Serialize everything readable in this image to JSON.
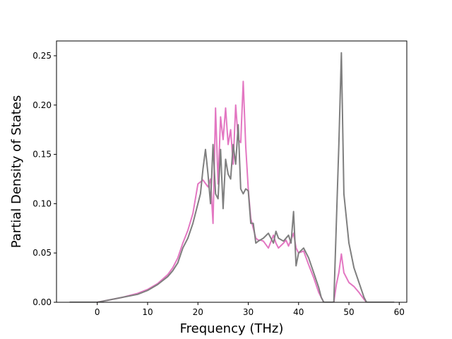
{
  "chart_data": {
    "type": "line",
    "title": "",
    "xlabel": "Frequency (THz)",
    "ylabel": "Partial Density of States",
    "xlim": [
      -8.1,
      61.5
    ],
    "ylim": [
      0,
      0.265
    ],
    "xticks": [
      0,
      10,
      20,
      30,
      40,
      50,
      60
    ],
    "yticks": [
      0.0,
      0.05,
      0.1,
      0.15,
      0.2,
      0.25
    ],
    "ytick_labels": [
      "0.00",
      "0.05",
      "0.10",
      "0.15",
      "0.20",
      "0.25"
    ],
    "grid": false,
    "legend": false,
    "series": [
      {
        "color": "#e377c2",
        "x": [
          -5.5,
          0,
          2,
          5,
          8,
          10,
          12,
          14,
          15,
          16,
          17,
          18,
          19,
          20,
          21,
          22,
          22.5,
          23,
          23.5,
          24,
          24.5,
          25,
          25.5,
          26,
          26.5,
          27,
          27.5,
          28,
          28.5,
          29,
          29.5,
          30,
          30.5,
          31,
          31.5,
          32,
          32.5,
          33,
          34,
          35,
          35.5,
          36,
          37,
          37.5,
          38,
          39,
          39.5,
          40,
          41,
          41.5,
          42,
          43,
          44,
          44.5,
          45,
          47,
          47.5,
          48,
          48.5,
          49,
          50,
          51,
          52,
          53,
          53.5,
          59
        ],
        "y": [
          0.0,
          0.0,
          0.002,
          0.005,
          0.009,
          0.013,
          0.019,
          0.028,
          0.035,
          0.045,
          0.06,
          0.073,
          0.09,
          0.12,
          0.124,
          0.117,
          0.125,
          0.08,
          0.197,
          0.12,
          0.188,
          0.165,
          0.197,
          0.16,
          0.175,
          0.14,
          0.2,
          0.165,
          0.162,
          0.224,
          0.158,
          0.115,
          0.085,
          0.075,
          0.065,
          0.063,
          0.063,
          0.062,
          0.055,
          0.068,
          0.06,
          0.055,
          0.06,
          0.063,
          0.057,
          0.07,
          0.055,
          0.05,
          0.052,
          0.045,
          0.038,
          0.025,
          0.01,
          0.005,
          0.0,
          0.0,
          0.018,
          0.03,
          0.049,
          0.03,
          0.02,
          0.016,
          0.01,
          0.003,
          0.0,
          0.0
        ]
      },
      {
        "color": "#7f7f7f",
        "x": [
          -5.5,
          0,
          2,
          5,
          8,
          10,
          12,
          14,
          15,
          16,
          17,
          18,
          19,
          20,
          20.5,
          21,
          21.5,
          22,
          22.5,
          23,
          23.5,
          24,
          24.5,
          25,
          25.5,
          26,
          26.5,
          27,
          27.5,
          28,
          28.5,
          29,
          29.5,
          30,
          30.5,
          31,
          31.5,
          32,
          33,
          34,
          35,
          35.5,
          36,
          37,
          38,
          38.5,
          39,
          39.5,
          40,
          41,
          41.5,
          42,
          43,
          44,
          44.5,
          45,
          47,
          47.5,
          48,
          48.5,
          49,
          50,
          51,
          52,
          53,
          53.5,
          59
        ],
        "y": [
          0.0,
          0.0,
          0.002,
          0.005,
          0.008,
          0.012,
          0.018,
          0.026,
          0.032,
          0.04,
          0.055,
          0.065,
          0.08,
          0.1,
          0.11,
          0.135,
          0.155,
          0.13,
          0.1,
          0.16,
          0.11,
          0.105,
          0.155,
          0.095,
          0.145,
          0.13,
          0.125,
          0.16,
          0.14,
          0.18,
          0.115,
          0.11,
          0.115,
          0.113,
          0.08,
          0.08,
          0.06,
          0.062,
          0.065,
          0.07,
          0.06,
          0.072,
          0.065,
          0.062,
          0.068,
          0.06,
          0.092,
          0.037,
          0.05,
          0.055,
          0.05,
          0.045,
          0.03,
          0.015,
          0.005,
          0.0,
          0.0,
          0.08,
          0.16,
          0.253,
          0.11,
          0.06,
          0.035,
          0.02,
          0.005,
          0.0,
          0.0
        ]
      }
    ]
  }
}
